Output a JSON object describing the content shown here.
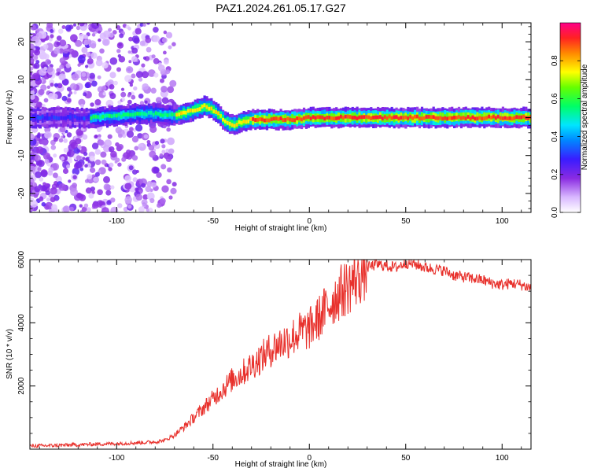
{
  "title": "PAZ1.2024.261.05.17.G27",
  "chart_data": [
    {
      "type": "heatmap",
      "name": "spectrogram",
      "xlabel": "Height of straight line (km)",
      "ylabel": "Frequency (Hz)",
      "xlim": [
        -145,
        115
      ],
      "ylim": [
        -25,
        25
      ],
      "xticks": [
        -100,
        -50,
        0,
        50,
        100
      ],
      "yticks": [
        -20,
        -10,
        0,
        10,
        20
      ],
      "colorbar": {
        "label": "Normalized spectral amplitude",
        "range": [
          0,
          1
        ],
        "ticks": [
          0.0,
          0.2,
          0.4,
          0.6,
          0.8
        ],
        "tick_labels": [
          "0.0",
          "0.2",
          "0.4",
          "0.6",
          "0.8"
        ],
        "colormap": "rainbow (white-violet-blue-cyan-green-yellow-red-magenta)"
      },
      "ridge": {
        "description": "Dominant frequency ridge versus height",
        "x": [
          -145,
          -120,
          -110,
          -100,
          -90,
          -80,
          -70,
          -60,
          -55,
          -52,
          -48,
          -44,
          -40,
          -35,
          -30,
          -20,
          -10,
          0,
          10,
          20,
          30,
          40,
          50,
          60,
          70,
          80,
          90,
          100,
          115
        ],
        "y": [
          0,
          0,
          0,
          0.5,
          1,
          1,
          0.5,
          2,
          3,
          2.5,
          1,
          -1,
          -2,
          -1,
          -0.5,
          -0.5,
          -0.5,
          0,
          0,
          0,
          0,
          0,
          0,
          0,
          0,
          0,
          0,
          0,
          0
        ]
      }
    },
    {
      "type": "line",
      "name": "snr",
      "xlabel": "Height of straight line (km)",
      "ylabel": "SNR (10 * v/v)",
      "xlim": [
        -145,
        115
      ],
      "ylim": [
        0,
        6000
      ],
      "xticks": [
        -100,
        -50,
        0,
        50,
        100
      ],
      "yticks": [
        2000,
        4000,
        6000
      ],
      "line_color": "#e8312c",
      "series": [
        {
          "x": [
            -145,
            -130,
            -115,
            -100,
            -90,
            -80,
            -75,
            -70,
            -65,
            -60,
            -55,
            -50,
            -45,
            -40,
            -35,
            -30,
            -25,
            -20,
            -15,
            -10,
            -5,
            0,
            5,
            10,
            15,
            20,
            25,
            30,
            35,
            40,
            45,
            50,
            55,
            60,
            65,
            70,
            75,
            80,
            85,
            90,
            95,
            100,
            105,
            110,
            115
          ],
          "y": [
            100,
            120,
            150,
            180,
            200,
            230,
            280,
            450,
            700,
            1000,
            1300,
            1600,
            1900,
            2200,
            2400,
            2650,
            2900,
            3150,
            3350,
            3500,
            3700,
            3800,
            4150,
            4550,
            4900,
            5150,
            5450,
            5750,
            5850,
            5800,
            5750,
            5900,
            5850,
            5750,
            5700,
            5650,
            5500,
            5450,
            5400,
            5350,
            5250,
            5200,
            5250,
            5200,
            5100
          ]
        }
      ]
    }
  ]
}
